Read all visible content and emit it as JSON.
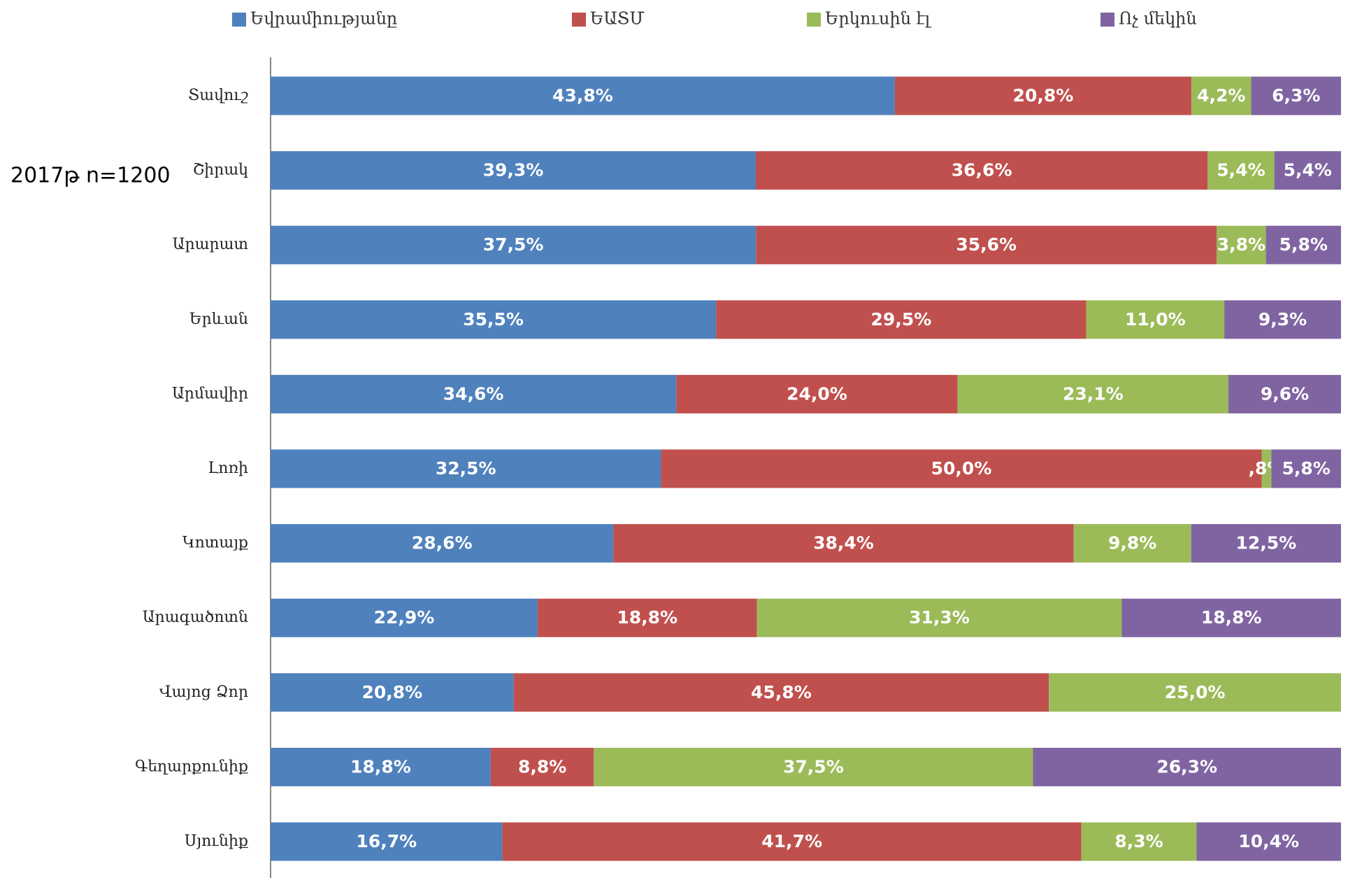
{
  "chart_data": {
    "type": "bar",
    "orientation": "horizontal",
    "stacking": "percent",
    "annotation": "2017թ n=1200",
    "categories": [
      "Տավուշ",
      "Շիրակ",
      "Արարատ",
      "Երևան",
      "Արմավիր",
      "Լոռի",
      "Կոտայք",
      "Արագածոտն",
      "Վայոց Ձոր",
      "Գեղարքունիք",
      "Սյունիք"
    ],
    "legend": "top",
    "series": [
      {
        "name": "Եվրամիությանը",
        "color": "#4f81bd",
        "values": [
          43.8,
          39.3,
          37.5,
          35.5,
          34.6,
          32.5,
          28.6,
          22.9,
          20.8,
          18.8,
          16.7
        ],
        "value_labels": [
          "43,8%",
          "39,3%",
          "37,5%",
          "35,5%",
          "34,6%",
          "32,5%",
          "28,6%",
          "22,9%",
          "20,8%",
          "18,8%",
          "16,7%"
        ]
      },
      {
        "name": "ԵԱՏՄ",
        "color": "#c0504d",
        "values": [
          20.8,
          36.6,
          35.6,
          29.5,
          24.0,
          50.0,
          38.4,
          18.8,
          45.8,
          8.8,
          41.7
        ],
        "value_labels": [
          "20,8%",
          "36,6%",
          "35,6%",
          "29,5%",
          "24,0%",
          "50,0%",
          "38,4%",
          "18,8%",
          "45,8%",
          "8,8%",
          "41,7%"
        ]
      },
      {
        "name": "Երկուսին էլ",
        "color": "#9bbb59",
        "values": [
          4.2,
          5.4,
          3.8,
          11.0,
          23.1,
          0.8,
          9.8,
          31.3,
          25.0,
          37.5,
          8.3
        ],
        "value_labels": [
          "4,2%",
          "5,4%",
          "3,8%",
          "11,0%",
          "23,1%",
          ",8%",
          "9,8%",
          "31,3%",
          "25,0%",
          "37,5%",
          "8,3%"
        ]
      },
      {
        "name": "Ոչ մեկին",
        "color": "#8064a2",
        "values": [
          6.3,
          5.4,
          5.8,
          9.3,
          9.6,
          5.8,
          12.5,
          18.8,
          null,
          26.3,
          10.4
        ],
        "value_labels": [
          "6,3%",
          "5,4%",
          "5,8%",
          "9,3%",
          "9,6%",
          "5,8%",
          "12,5%",
          "18,8%",
          null,
          "26,3%",
          "10,4%"
        ]
      }
    ]
  }
}
